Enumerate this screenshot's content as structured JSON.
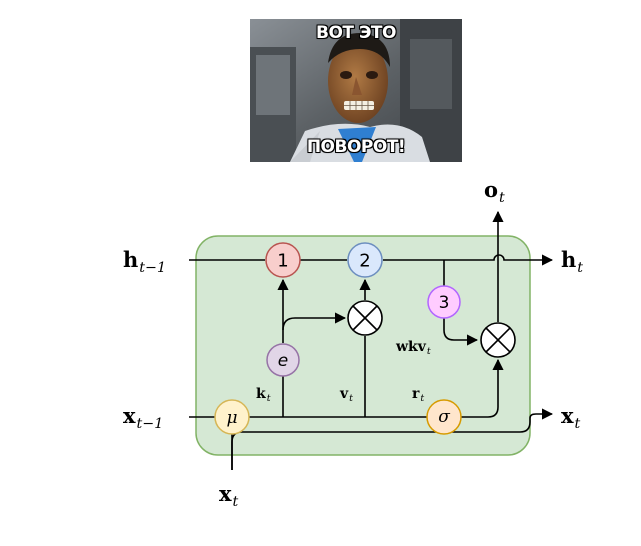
{
  "meme": {
    "caption_top": "ВОТ ЭТО",
    "caption_bottom": "ПОВОРОТ!"
  },
  "diagram": {
    "colors": {
      "cell_fill": "#d5e8d4",
      "cell_stroke": "#82b366",
      "node1_fill": "#f8cecc",
      "node1_stroke": "#b85450",
      "node2_fill": "#dae8fc",
      "node2_stroke": "#6c8ebf",
      "node3_fill": "#ffccff",
      "node3_stroke": "#b266ff",
      "e_fill": "#e1d5e7",
      "e_stroke": "#9673a6",
      "mu_fill": "#fff2cc",
      "mu_stroke": "#d6b656",
      "sigma_fill": "#ffe6cc",
      "sigma_stroke": "#d79b00"
    },
    "nodes": {
      "n1": "1",
      "n2": "2",
      "n3": "3",
      "e": "e",
      "mu": "μ",
      "sigma": "σ"
    },
    "labels": {
      "h_prev": {
        "base": "h",
        "sub": "t−1"
      },
      "h_out": {
        "base": "h",
        "sub": "t"
      },
      "x_prev": {
        "base": "x",
        "sub": "t−1"
      },
      "x_out": {
        "base": "x",
        "sub": "t"
      },
      "x_in": {
        "base": "x",
        "sub": "t"
      },
      "o_out": {
        "base": "o",
        "sub": "t"
      },
      "k": {
        "base": "k",
        "sub": "t"
      },
      "v": {
        "base": "v",
        "sub": "t"
      },
      "r": {
        "base": "r",
        "sub": "t"
      },
      "wkv": {
        "base": "wkv",
        "sub": "t"
      }
    }
  }
}
